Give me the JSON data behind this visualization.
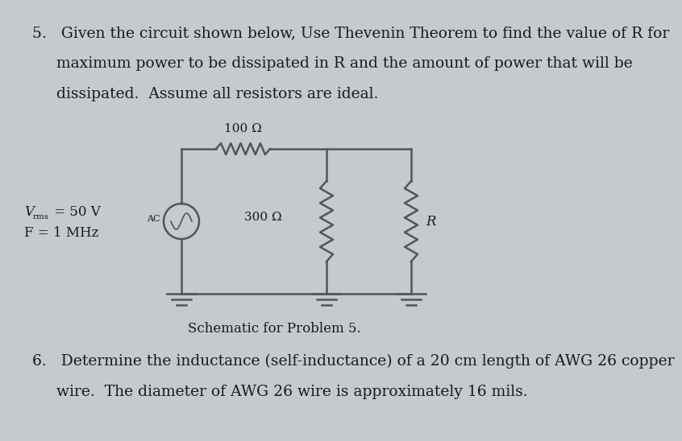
{
  "bg_color": "#c5cacf",
  "text_color": "#1a1a1a",
  "line_color": "#555555",
  "problem5_line1": "5.   Given the circuit shown below, Use Thevenin Theorem to find the value of R for",
  "problem5_line2": "     maximum power to be dissipated in R and the amount of power that will be",
  "problem5_line3": "     dissipated.  Assume all resistors are ideal.",
  "problem6_line1": "6.   Determine the inductance (self-inductance) of a 20 cm length of AWG 26 copper",
  "problem6_line2": "     wire.  The diameter of AWG 26 wire is approximately 16 mils.",
  "schematic_label": "Schematic for Problem 5.",
  "vrms_label": "V",
  "vrms_sub": "rms",
  "vrms_rest": " = 50 V",
  "freq_label": "F = 1 MHz",
  "ac_label": "AC",
  "r100_label": "100 Ω",
  "r300_label": "300 Ω",
  "r_label": "R",
  "font_size_body": 13.5,
  "font_size_circuit": 11
}
